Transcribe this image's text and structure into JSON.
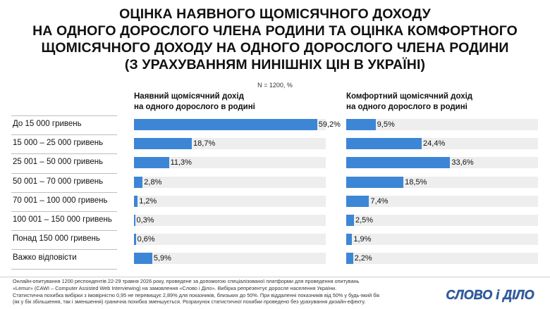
{
  "title_lines": [
    "ОЦІНКА НАЯВНОГО ЩОМІСЯЧНОГО ДОХОДУ",
    "НА ОДНОГО ДОРОСЛОГО ЧЛЕНА РОДИНИ ТА  ОЦІНКА КОМФОРТНОГО",
    "ЩОМІСЯЧНОГО ДОХОДУ НА ОДНОГО ДОРОСЛОГО ЧЛЕНА РОДИНИ",
    "(З УРАХУВАННЯМ НИНІШНІХ ЦІН В УКРАЇНІ)"
  ],
  "sample_note": "N = 1200, %",
  "footnote_lines": [
    "Онлайн-опитування 1200 респондентів 22-29 травня 2026 року, проведене за допомогою спеціалізованої платформи для проведення опитувань",
    "«Lemur» (CAWI – Computer Assisted Web Interviewing) на замовлення «Слово і Діло». Вибірка репрезентує доросле населення України.",
    "Статистична похибка вибірки з імовірністю 0,95 не перевищує 2,89% для показників, близьких до 50%. При віддаленні показників від 50% у будь-який бік",
    "(як у бік збільшення, так і зменшення) гранична похибка зменшується. Розрахунок статистичної похибки проведено без урахування дизайн-ефекту."
  ],
  "logo_text": "СЛОВО і ДІЛО",
  "colors": {
    "bar": "#3d86d6",
    "track": "#eeeeee",
    "logo": "#2d5fa8"
  },
  "chart_data": {
    "type": "bar",
    "orientation": "horizontal",
    "title": "ОЦІНКА НАЯВНОГО ЩОМІСЯЧНОГО ДОХОДУ НА ОДНОГО ДОРОСЛОГО ЧЛЕНА РОДИНИ ТА  ОЦІНКА КОМФОРТНОГО ЩОМІСЯЧНОГО ДОХОДУ НА ОДНОГО ДОРОСЛОГО ЧЛЕНА РОДИНИ (З УРАХУВАННЯМ НИНІШНІХ ЦІН В УКРАЇНІ)",
    "unit": "%",
    "categories": [
      "До 15 000 гривень",
      "15 000 – 25 000 гривень",
      "25 001 – 50 000 гривень",
      "50 001 – 70 000 гривень",
      "70 001 – 100 000 гривень",
      "100 001 – 150 000 гривень",
      "Понад 150 000 гривень",
      "Важко відповісти"
    ],
    "series": [
      {
        "name_lines": [
          "Наявний щомісячний дохід",
          "на одного дорослого в родині"
        ],
        "values": [
          59.2,
          18.7,
          11.3,
          2.8,
          1.2,
          0.3,
          0.6,
          5.9
        ],
        "labels": [
          "59,2%",
          "18,7%",
          "11,3%",
          "2,8%",
          "1,2%",
          "0,3%",
          "0,6%",
          "5,9%"
        ]
      },
      {
        "name_lines": [
          "Комфортний щомісячний дохід",
          "на одного дорослого в родині"
        ],
        "values": [
          9.5,
          24.4,
          33.6,
          18.5,
          7.4,
          2.5,
          1.9,
          2.2
        ],
        "labels": [
          "9,5%",
          "24,4%",
          "33,6%",
          "18,5%",
          "7,4%",
          "2,5%",
          "1,9%",
          "2,2%"
        ]
      }
    ],
    "xlim": [
      0,
      100
    ],
    "grid": false,
    "legend": "none"
  }
}
